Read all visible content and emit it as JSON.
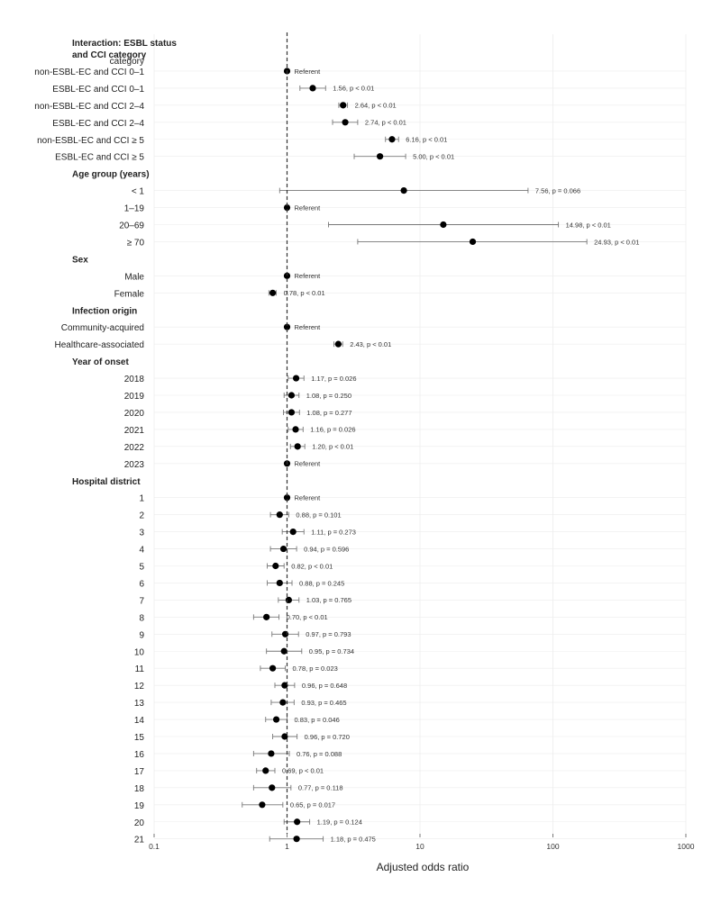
{
  "chart_data": {
    "type": "forest",
    "xlabel": "Adjusted odds ratio",
    "xscale": "log",
    "xlim": [
      0.1,
      1000
    ],
    "xticks": [
      0.1,
      1,
      10,
      100,
      1000
    ],
    "xtick_labels": [
      "0.1",
      "1",
      "10",
      "100",
      "1000"
    ],
    "reference_line": 1,
    "rows": [
      {
        "kind": "header",
        "label": "Interaction: ESBL status and CCI category",
        "label_lines": [
          "Interaction: ESBL status",
          "and CCI category"
        ]
      },
      {
        "kind": "item",
        "label": "category",
        "label_lines": [
          "category",
          "non-ESBL-EC and CCI 0–1"
        ],
        "or": 1,
        "lo": 1,
        "hi": 1,
        "text": "Referent"
      },
      {
        "kind": "item",
        "label": "ESBL-EC and CCI 0–1",
        "or": 1.56,
        "lo": 1.25,
        "hi": 1.95,
        "text": "1.56, p < 0.01"
      },
      {
        "kind": "item",
        "label": "non-ESBL-EC and CCI 2–4",
        "or": 2.64,
        "lo": 2.45,
        "hi": 2.85,
        "text": "2.64, p < 0.01"
      },
      {
        "kind": "item",
        "label": "ESBL-EC and CCI 2–4",
        "or": 2.74,
        "lo": 2.2,
        "hi": 3.4,
        "text": "2.74, p < 0.01"
      },
      {
        "kind": "item",
        "label": "non-ESBL-EC and CCI ≥ 5",
        "or": 6.16,
        "lo": 5.5,
        "hi": 6.9,
        "text": "6.16, p < 0.01"
      },
      {
        "kind": "item",
        "label": "ESBL-EC and CCI ≥ 5",
        "or": 5.0,
        "lo": 3.2,
        "hi": 7.8,
        "text": "5.00, p < 0.01"
      },
      {
        "kind": "header",
        "label": "Age group (years)"
      },
      {
        "kind": "item",
        "label": "< 1",
        "or": 7.56,
        "lo": 0.88,
        "hi": 65,
        "text": "7.56, p = 0.066"
      },
      {
        "kind": "item",
        "label": "1–19",
        "or": 1,
        "lo": 1,
        "hi": 1,
        "text": "Referent"
      },
      {
        "kind": "item",
        "label": "20–69",
        "or": 14.98,
        "lo": 2.05,
        "hi": 110,
        "text": "14.98, p < 0.01"
      },
      {
        "kind": "item",
        "label": "≥ 70",
        "or": 24.93,
        "lo": 3.4,
        "hi": 180,
        "text": "24.93, p < 0.01"
      },
      {
        "kind": "header",
        "label": "Sex"
      },
      {
        "kind": "item",
        "label": "Male",
        "or": 1,
        "lo": 1,
        "hi": 1,
        "text": "Referent"
      },
      {
        "kind": "item",
        "label": "Female",
        "or": 0.78,
        "lo": 0.73,
        "hi": 0.83,
        "text": "0.78, p < 0.01"
      },
      {
        "kind": "header",
        "label": "Infection origin"
      },
      {
        "kind": "item",
        "label": "Community-acquired",
        "or": 1,
        "lo": 1,
        "hi": 1,
        "text": "Referent"
      },
      {
        "kind": "item",
        "label": "Healthcare-associated",
        "or": 2.43,
        "lo": 2.25,
        "hi": 2.62,
        "text": "2.43, p < 0.01"
      },
      {
        "kind": "header",
        "label": "Year of onset"
      },
      {
        "kind": "item",
        "label": "2018",
        "or": 1.17,
        "lo": 1.02,
        "hi": 1.34,
        "text": "1.17, p = 0.026"
      },
      {
        "kind": "item",
        "label": "2019",
        "or": 1.08,
        "lo": 0.95,
        "hi": 1.23,
        "text": "1.08, p = 0.250"
      },
      {
        "kind": "item",
        "label": "2020",
        "or": 1.08,
        "lo": 0.94,
        "hi": 1.24,
        "text": "1.08, p = 0.277"
      },
      {
        "kind": "item",
        "label": "2021",
        "or": 1.16,
        "lo": 1.02,
        "hi": 1.32,
        "text": "1.16, p = 0.026"
      },
      {
        "kind": "item",
        "label": "2022",
        "or": 1.2,
        "lo": 1.06,
        "hi": 1.36,
        "text": "1.20, p < 0.01"
      },
      {
        "kind": "item",
        "label": "2023",
        "or": 1,
        "lo": 1,
        "hi": 1,
        "text": "Referent"
      },
      {
        "kind": "header",
        "label": "Hospital district"
      },
      {
        "kind": "item",
        "label": "1",
        "or": 1,
        "lo": 1,
        "hi": 1,
        "text": "Referent"
      },
      {
        "kind": "item",
        "label": "2",
        "or": 0.88,
        "lo": 0.75,
        "hi": 1.03,
        "text": "0.88, p = 0.101"
      },
      {
        "kind": "item",
        "label": "3",
        "or": 1.11,
        "lo": 0.92,
        "hi": 1.34,
        "text": "1.11, p = 0.273"
      },
      {
        "kind": "item",
        "label": "4",
        "or": 0.94,
        "lo": 0.75,
        "hi": 1.18,
        "text": "0.94, p = 0.596"
      },
      {
        "kind": "item",
        "label": "5",
        "or": 0.82,
        "lo": 0.71,
        "hi": 0.95,
        "text": "0.82, p < 0.01"
      },
      {
        "kind": "item",
        "label": "6",
        "or": 0.88,
        "lo": 0.71,
        "hi": 1.09,
        "text": "0.88, p = 0.245"
      },
      {
        "kind": "item",
        "label": "7",
        "or": 1.03,
        "lo": 0.86,
        "hi": 1.23,
        "text": "1.03, p = 0.765"
      },
      {
        "kind": "item",
        "label": "8",
        "or": 0.7,
        "lo": 0.56,
        "hi": 0.87,
        "text": "0.70, p < 0.01"
      },
      {
        "kind": "item",
        "label": "9",
        "or": 0.97,
        "lo": 0.77,
        "hi": 1.22,
        "text": "0.97, p = 0.793"
      },
      {
        "kind": "item",
        "label": "10",
        "or": 0.95,
        "lo": 0.7,
        "hi": 1.29,
        "text": "0.95, p = 0.734"
      },
      {
        "kind": "item",
        "label": "11",
        "or": 0.78,
        "lo": 0.63,
        "hi": 0.97,
        "text": "0.78, p = 0.023"
      },
      {
        "kind": "item",
        "label": "12",
        "or": 0.96,
        "lo": 0.81,
        "hi": 1.14,
        "text": "0.96, p = 0.648"
      },
      {
        "kind": "item",
        "label": "13",
        "or": 0.93,
        "lo": 0.76,
        "hi": 1.13,
        "text": "0.93, p = 0.465"
      },
      {
        "kind": "item",
        "label": "14",
        "or": 0.83,
        "lo": 0.69,
        "hi": 1.0,
        "text": "0.83, p = 0.046"
      },
      {
        "kind": "item",
        "label": "15",
        "or": 0.96,
        "lo": 0.78,
        "hi": 1.19,
        "text": "0.96, p = 0.720"
      },
      {
        "kind": "item",
        "label": "16",
        "or": 0.76,
        "lo": 0.56,
        "hi": 1.04,
        "text": "0.76, p = 0.088"
      },
      {
        "kind": "item",
        "label": "17",
        "or": 0.69,
        "lo": 0.59,
        "hi": 0.81,
        "text": "0.69, p < 0.01"
      },
      {
        "kind": "item",
        "label": "18",
        "or": 0.77,
        "lo": 0.56,
        "hi": 1.07,
        "text": "0.77, p = 0.118"
      },
      {
        "kind": "item",
        "label": "19",
        "or": 0.65,
        "lo": 0.46,
        "hi": 0.93,
        "text": "0.65, p = 0.017"
      },
      {
        "kind": "item",
        "label": "20",
        "or": 1.19,
        "lo": 0.95,
        "hi": 1.48,
        "text": "1.19, p = 0.124"
      },
      {
        "kind": "item",
        "label": "21",
        "or": 1.18,
        "lo": 0.74,
        "hi": 1.87,
        "text": "1.18, p = 0.475"
      }
    ]
  }
}
